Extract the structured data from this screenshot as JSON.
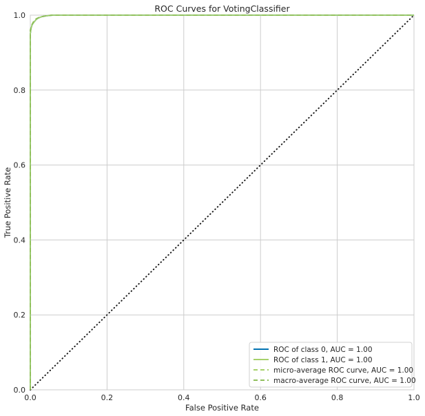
{
  "chart_data": {
    "type": "line",
    "title": "ROC Curves for VotingClassifier",
    "xlabel": "False Positive Rate",
    "ylabel": "True Positive Rate",
    "xlim": [
      0,
      1
    ],
    "ylim": [
      0,
      1
    ],
    "xticks": [
      "0.0",
      "0.2",
      "0.4",
      "0.6",
      "0.8",
      "1.0"
    ],
    "yticks": [
      "0.0",
      "0.2",
      "0.4",
      "0.6",
      "0.8",
      "1.0"
    ],
    "grid": true,
    "legend_position": "lower-right",
    "series": [
      {
        "name": "ROC of class 0, AUC = 1.00",
        "color": "#0072B2",
        "style": "solid",
        "x": [
          0,
          0,
          0.002,
          0.005,
          0.01,
          0.015,
          0.02,
          0.03,
          0.04,
          0.05,
          0.06,
          1.0
        ],
        "y": [
          0,
          0.95,
          0.965,
          0.975,
          0.982,
          0.988,
          0.992,
          0.996,
          0.998,
          0.999,
          1.0,
          1.0
        ]
      },
      {
        "name": "ROC of class 1, AUC = 1.00",
        "color": "#A6D16A",
        "style": "solid",
        "x": [
          0,
          0,
          0.002,
          0.005,
          0.01,
          0.015,
          0.02,
          0.03,
          0.04,
          0.05,
          0.06,
          1.0
        ],
        "y": [
          0,
          0.95,
          0.965,
          0.975,
          0.982,
          0.988,
          0.992,
          0.996,
          0.998,
          0.999,
          1.0,
          1.0
        ]
      },
      {
        "name": "micro-average ROC curve, AUC = 1.00",
        "color": "#A6D16A",
        "style": "dashed",
        "x": [
          0,
          0,
          0.003,
          0.008,
          0.015,
          0.025,
          0.04,
          0.055,
          1.0
        ],
        "y": [
          0,
          0.96,
          0.972,
          0.982,
          0.99,
          0.995,
          0.998,
          1.0,
          1.0
        ]
      },
      {
        "name": "macro-average ROC curve, AUC = 1.00",
        "color": "#8FBF5A",
        "style": "dashed",
        "x": [
          0,
          0,
          0.003,
          0.008,
          0.015,
          0.025,
          0.04,
          0.055,
          1.0
        ],
        "y": [
          0,
          0.96,
          0.972,
          0.982,
          0.99,
          0.995,
          0.998,
          1.0,
          1.0
        ]
      }
    ],
    "reference_line": {
      "x": [
        0,
        1
      ],
      "y": [
        0,
        1
      ],
      "color": "#1a1a1a",
      "style": "dotted"
    }
  }
}
